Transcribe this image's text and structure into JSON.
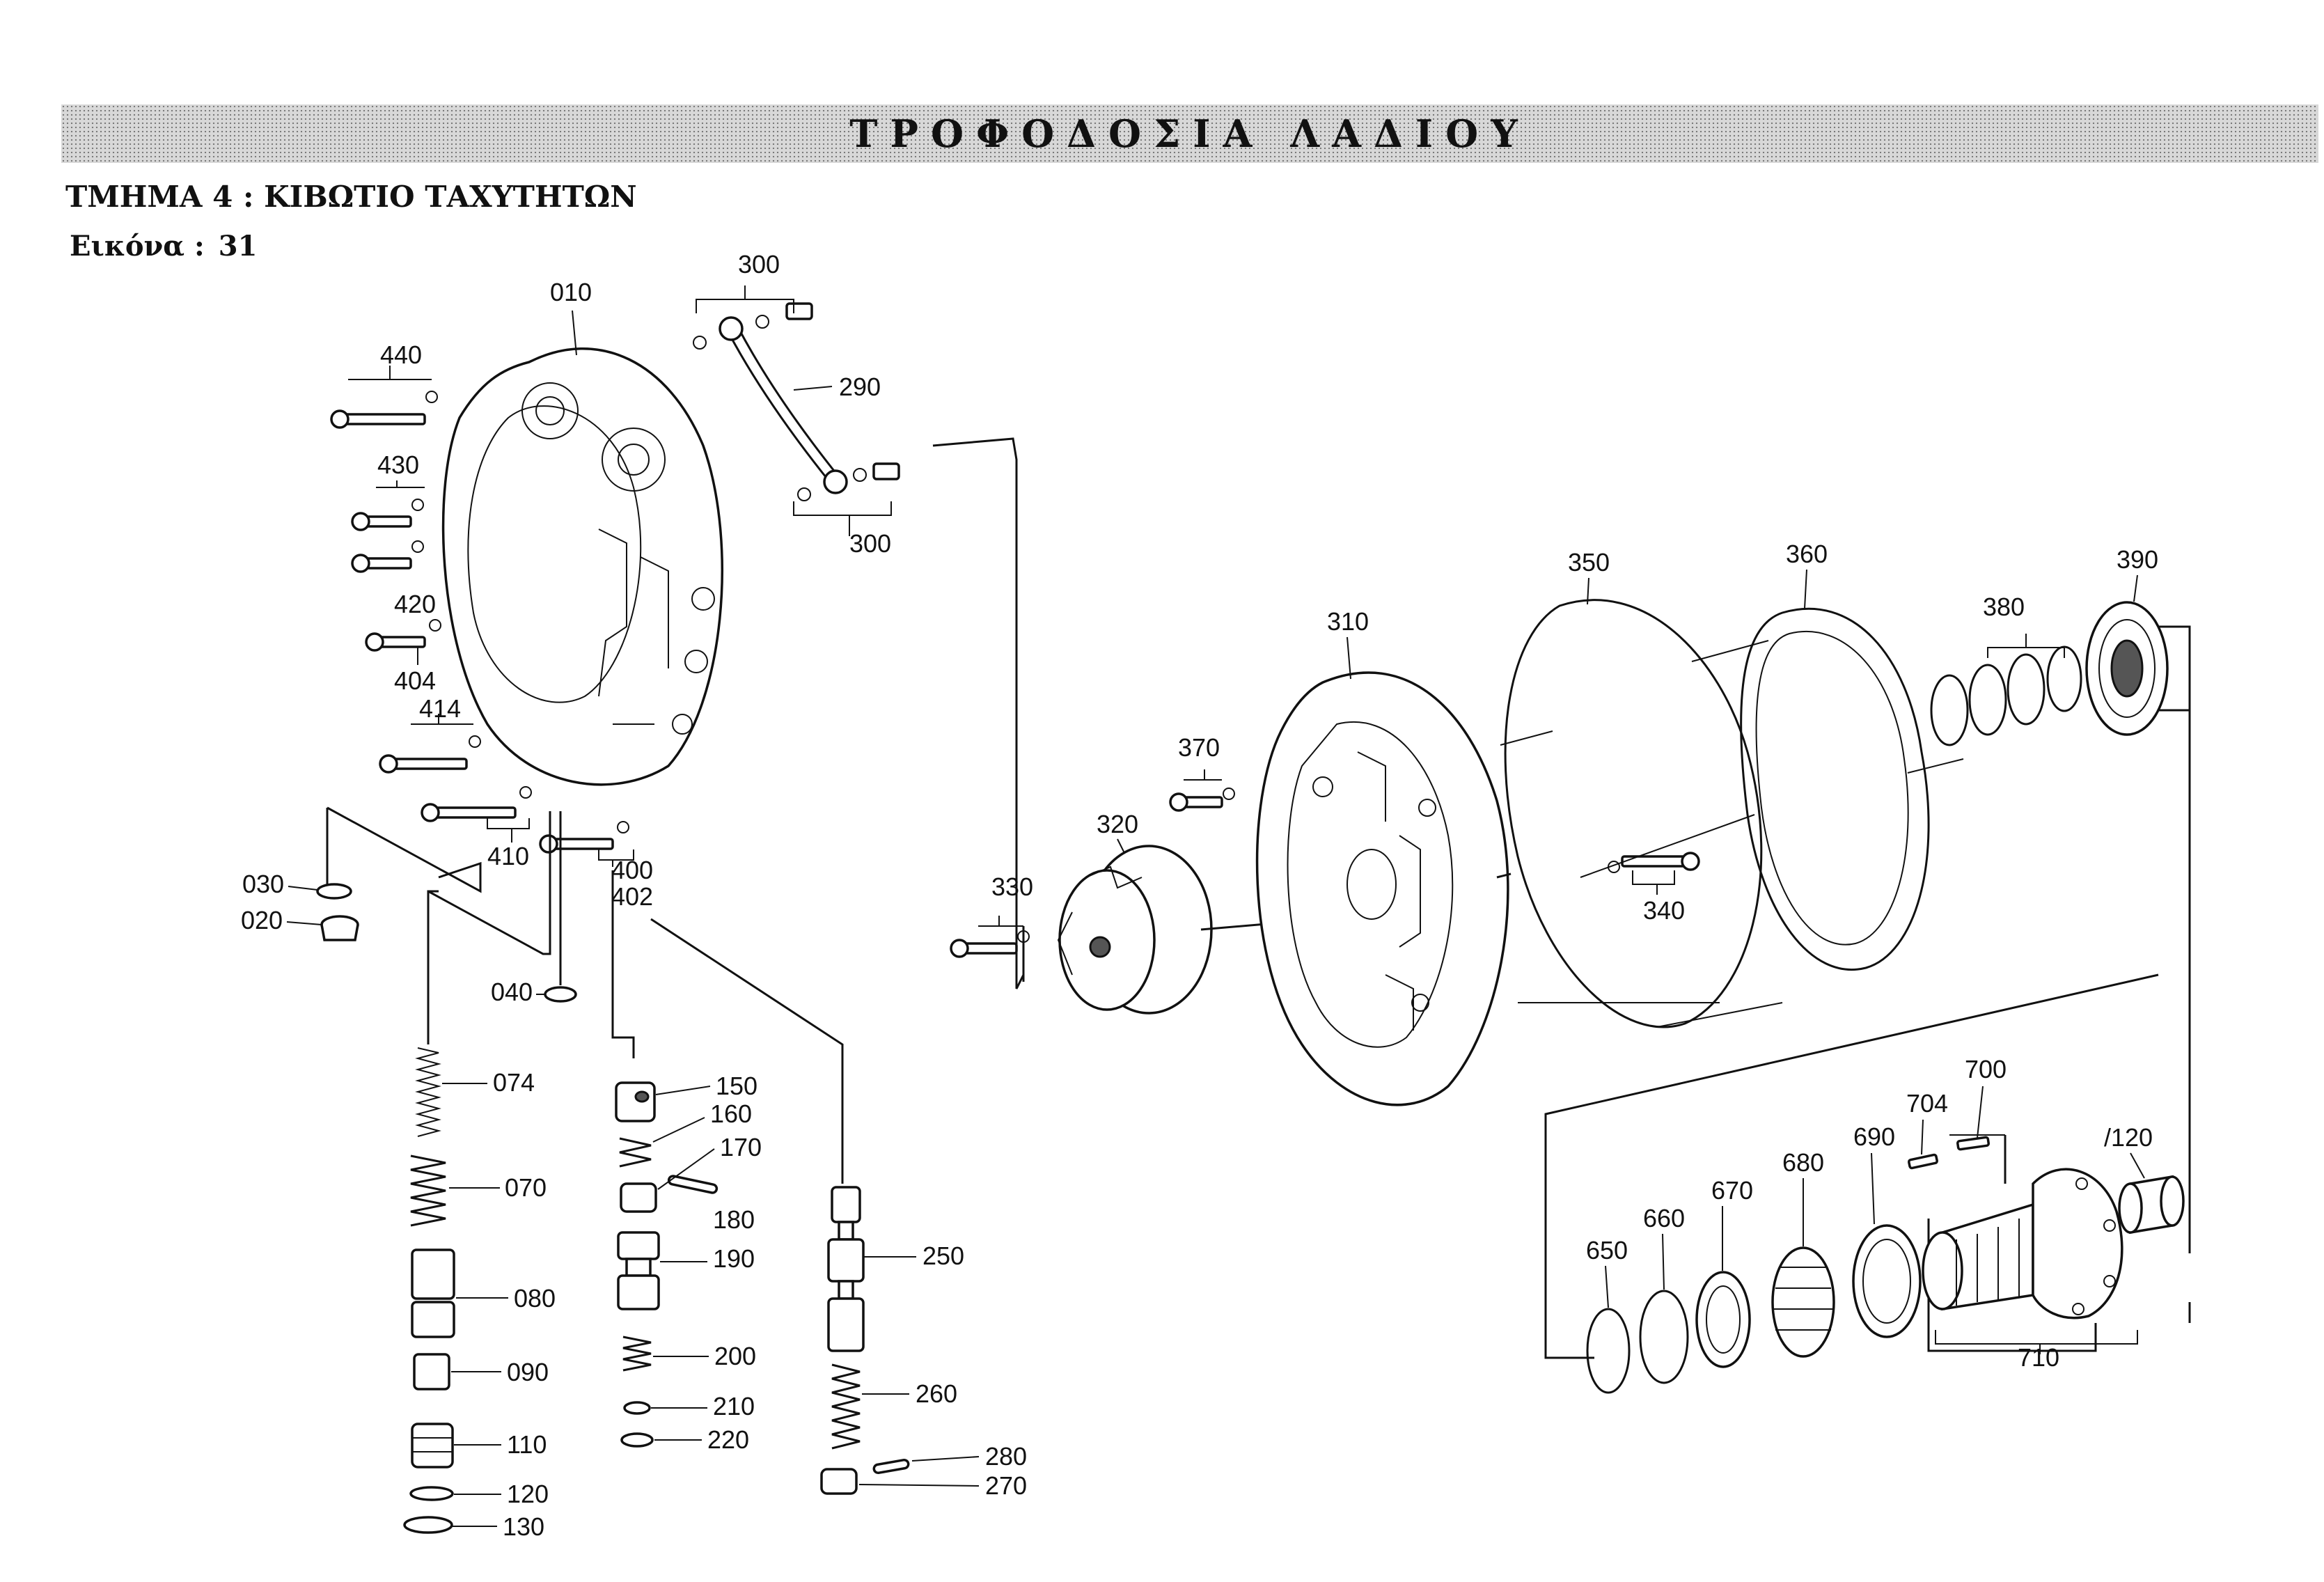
{
  "header": {
    "banner_title": "ΤΡΟΦΟΔΟΣΙΑ ΛΑΔΙΟΥ",
    "section_title": "ΤΜΗΜΑ 4 : ΚΙΒΩΤΙΟ ΤΑΧΥΤΗΤΩΝ",
    "figure_label": "Εικόνα :",
    "figure_number": "31"
  },
  "callouts": {
    "p010": "010",
    "p300a": "300",
    "p290": "290",
    "p440": "440",
    "p430": "430",
    "p300b": "300",
    "p420": "420",
    "p404": "404",
    "p414": "414",
    "p410": "410",
    "p400": "400",
    "p402": "402",
    "p030": "030",
    "p020": "020",
    "p040": "040",
    "p074": "074",
    "p070": "070",
    "p080": "080",
    "p090": "090",
    "p110": "110",
    "p120": "120",
    "p130": "130",
    "p150": "150",
    "p160": "160",
    "p170": "170",
    "p180": "180",
    "p190": "190",
    "p200": "200",
    "p210": "210",
    "p220": "220",
    "p250": "250",
    "p260": "260",
    "p280": "280",
    "p270": "270",
    "p330": "330",
    "p320": "320",
    "p370": "370",
    "p310": "310",
    "p340": "340",
    "p350": "350",
    "p360": "360",
    "p380": "380",
    "p390": "390",
    "p700": "700",
    "p704": "704",
    "p690": "690",
    "p680": "680",
    "p670": "670",
    "p660": "660",
    "p650": "650",
    "p120b": "/120",
    "p710": "710"
  }
}
